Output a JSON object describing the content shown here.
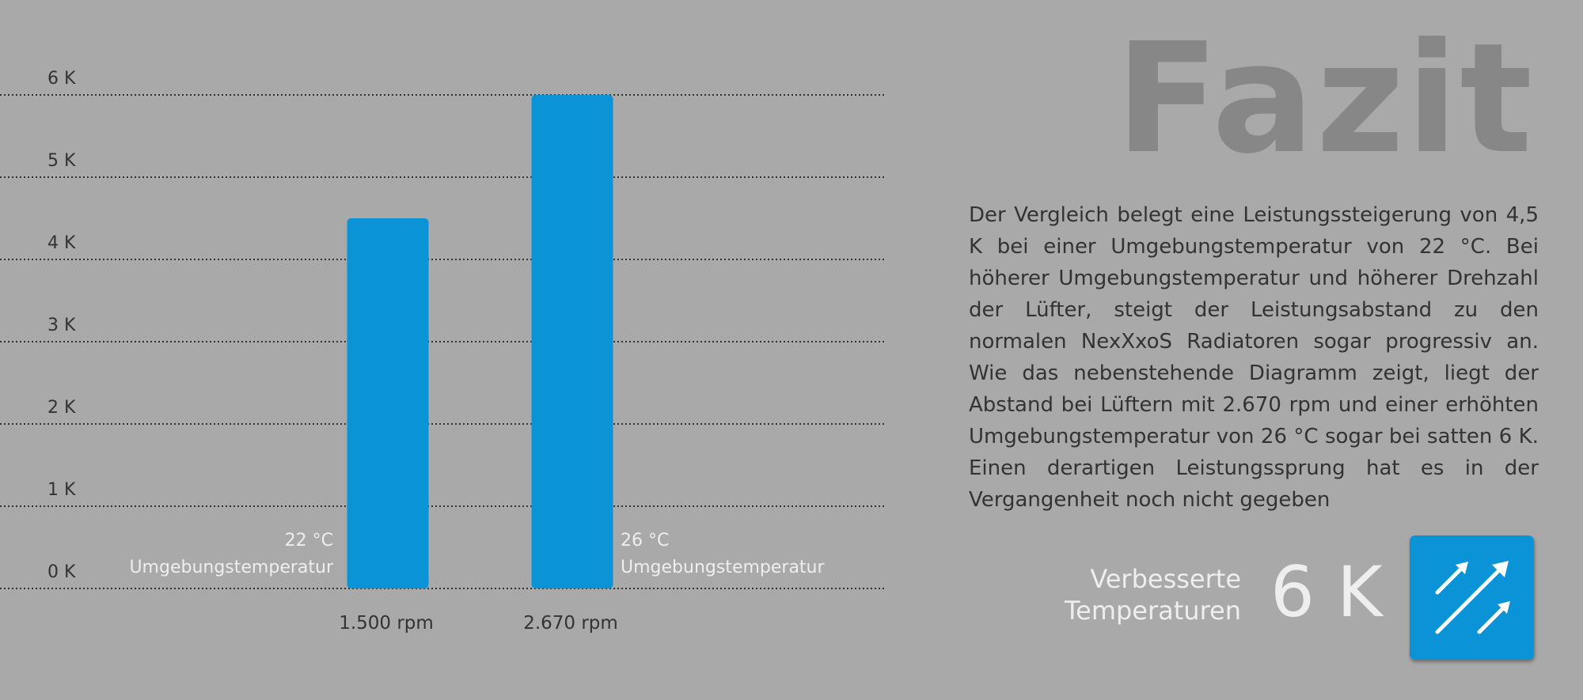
{
  "chart_data": {
    "type": "bar",
    "categories": [
      "1.500 rpm",
      "2.670 rpm"
    ],
    "values": [
      4.5,
      6.0
    ],
    "ylim": [
      0,
      6
    ],
    "yticks": [
      "0 K",
      "1 K",
      "2 K",
      "3 K",
      "4 K",
      "5 K",
      "6 K"
    ],
    "grid": true,
    "annotations": [
      {
        "line1": "22 °C",
        "line2": "Umgebungstemperatur"
      },
      {
        "line1": "26 °C",
        "line2": "Umgebungstemperatur"
      }
    ],
    "bar_color": "#0a93d6"
  },
  "title": "Fazit",
  "paragraph": "Der Vergleich belegt eine Leistungssteigerung von 4,5 K bei einer Umgebungstemperatur von 22 °C. Bei höherer Umgebungstemperatur und höherer Drehzahl der Lüfter, steigt der Leistungsabstand zu den normalen NexXxoS Radiatoren sogar progressiv an. Wie das nebenstehende Diagramm zeigt, liegt der Abstand bei Lüftern mit 2.670 rpm und einer erhöhten Umgebungstemperatur von 26 °C sogar bei satten 6 K. Einen derartigen Leistungssprung hat es in der Vergangenheit noch nicht gegeben",
  "highlight": {
    "label_line1": "Verbesserte",
    "label_line2": "Temperaturen",
    "value": "6 K",
    "icon": "trend-up-arrows-icon",
    "badge_color": "#0a93d6"
  },
  "colors": {
    "background": "#a9a9a9",
    "accent": "#0a93d6",
    "title": "#878787"
  }
}
